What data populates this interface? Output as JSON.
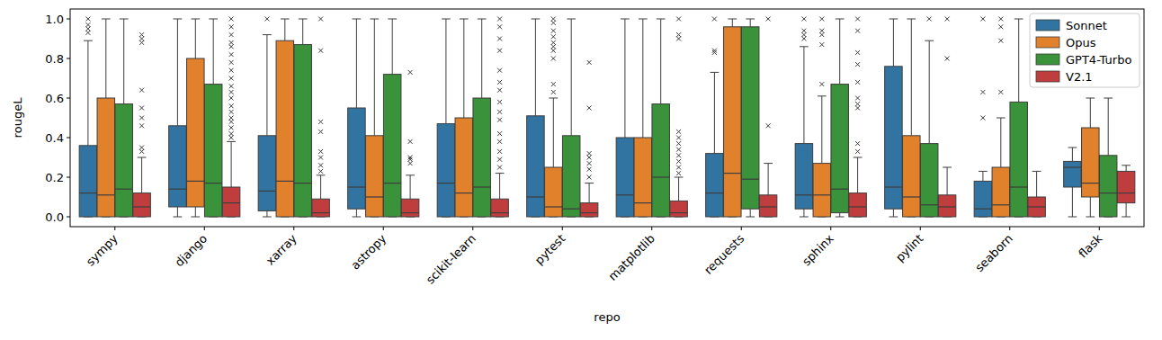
{
  "chart_data": {
    "type": "box",
    "x_label": "repo",
    "y_label": "rougeL",
    "categories": [
      "sympy",
      "django",
      "xarray",
      "astropy",
      "scikit-learn",
      "pytest",
      "matplotlib",
      "requests",
      "sphinx",
      "pylint",
      "seaborn",
      "flask"
    ],
    "ylim": [
      -0.05,
      1.05
    ],
    "yticks": [
      {
        "value": 0,
        "label": "0.0"
      },
      0.2,
      0.4,
      0.6,
      0.8,
      {
        "value": 1,
        "label": "1.0"
      }
    ],
    "grid": false,
    "legend": "upper right",
    "marker": "x",
    "series": [
      {
        "name": "Sonnet",
        "color": "#3274a1",
        "min": [
          0,
          0,
          0,
          0,
          0,
          0,
          0,
          0,
          0,
          0,
          0,
          0
        ],
        "q1": [
          0,
          0.05,
          0.03,
          0.04,
          0,
          0,
          0,
          0,
          0.04,
          0.04,
          0,
          0.15
        ],
        "median": [
          0.12,
          0.14,
          0.13,
          0.15,
          0.17,
          0.1,
          0.11,
          0.12,
          0.11,
          0.15,
          0.04,
          0.25
        ],
        "q3": [
          0.36,
          0.46,
          0.41,
          0.55,
          0.47,
          0.51,
          0.4,
          0.32,
          0.37,
          0.76,
          0.18,
          0.28
        ],
        "max": [
          0.89,
          1,
          0.92,
          1,
          1,
          1,
          1,
          0.73,
          0.86,
          1,
          0.23,
          0.35
        ],
        "outliers": [
          [
            0.93,
            0.95,
            0.97,
            1
          ],
          [],
          [
            1
          ],
          [],
          [],
          [],
          [],
          [
            0.83,
            0.84,
            1
          ],
          [
            0.9,
            0.92,
            0.94,
            1
          ],
          [],
          [
            0.5,
            0.63,
            1
          ],
          []
        ]
      },
      {
        "name": "Opus",
        "color": "#e1812c",
        "min": [
          0,
          0,
          0,
          0,
          0,
          0,
          0,
          0,
          0,
          0,
          0,
          0
        ],
        "q1": [
          0,
          0.05,
          0,
          0,
          0,
          0,
          0,
          0,
          0,
          0,
          0,
          0.1
        ],
        "median": [
          0.11,
          0.18,
          0.18,
          0.1,
          0.12,
          0.05,
          0.07,
          0.22,
          0.11,
          0.1,
          0.06,
          0.17
        ],
        "q3": [
          0.6,
          0.8,
          0.89,
          0.41,
          0.5,
          0.25,
          0.4,
          0.96,
          0.27,
          0.41,
          0.25,
          0.45
        ],
        "max": [
          1,
          1,
          1,
          1,
          1,
          0.6,
          1,
          1,
          0.61,
          1,
          0.5,
          0.6
        ],
        "outliers": [
          [],
          [],
          [],
          [],
          [],
          [
            0.63,
            0.67,
            0.8,
            0.84,
            0.86,
            0.88,
            0.91,
            0.94,
            0.98,
            1
          ],
          [],
          [],
          [
            0.67,
            0.87,
            0.92,
            0.94,
            1
          ],
          [],
          [
            0.63,
            0.89,
            0.96,
            1
          ],
          []
        ]
      },
      {
        "name": "GPT4-Turbo",
        "color": "#3a923a",
        "min": [
          0,
          0,
          0,
          0,
          0,
          0,
          0,
          0,
          0,
          0,
          0,
          0
        ],
        "q1": [
          0,
          0,
          0,
          0,
          0,
          0,
          0,
          0.04,
          0.02,
          0,
          0,
          0
        ],
        "median": [
          0.14,
          0.17,
          0.17,
          0.17,
          0.15,
          0.04,
          0.2,
          0.19,
          0.14,
          0.06,
          0.15,
          0.12
        ],
        "q3": [
          0.57,
          0.67,
          0.87,
          0.72,
          0.6,
          0.41,
          0.57,
          0.96,
          0.67,
          0.37,
          0.58,
          0.31
        ],
        "max": [
          1,
          1,
          1,
          1,
          1,
          1,
          1,
          1,
          1,
          0.89,
          1,
          0.6
        ],
        "outliers": [
          [],
          [],
          [],
          [],
          [],
          [],
          [],
          [],
          [],
          [
            1
          ],
          [],
          []
        ]
      },
      {
        "name": "V2.1",
        "color": "#c03d3e",
        "min": [
          0,
          0,
          0,
          0,
          0,
          0,
          0,
          0,
          0,
          0,
          0,
          0
        ],
        "q1": [
          0,
          0,
          0,
          0,
          0,
          0,
          0,
          0,
          0,
          0,
          0,
          0.07
        ],
        "median": [
          0.05,
          0.07,
          0.02,
          0.02,
          0.02,
          0.02,
          0.02,
          0.05,
          0.05,
          0.05,
          0.05,
          0.12
        ],
        "q3": [
          0.12,
          0.15,
          0.09,
          0.09,
          0.09,
          0.07,
          0.08,
          0.11,
          0.12,
          0.11,
          0.1,
          0.23
        ],
        "max": [
          0.3,
          0.38,
          0.21,
          0.21,
          0.22,
          0.17,
          0.2,
          0.27,
          0.3,
          0.25,
          0.23,
          0.26
        ],
        "outliers": [
          [
            0.33,
            0.35,
            0.46,
            0.5,
            0.55,
            0.64,
            0.88,
            0.9,
            0.92
          ],
          [
            0.4,
            0.42,
            0.45,
            0.48,
            0.5,
            0.53,
            0.56,
            0.6,
            0.63,
            0.66,
            0.7,
            0.74,
            0.78,
            0.82,
            0.86,
            0.88,
            0.92,
            0.96,
            1
          ],
          [
            0.23,
            0.26,
            0.3,
            0.33,
            0.43,
            0.48,
            0.84,
            1
          ],
          [
            0.27,
            0.29,
            0.3,
            0.38,
            0.73
          ],
          [
            0.25,
            0.29,
            0.33,
            0.38,
            0.42,
            0.49,
            0.53,
            0.58,
            0.64,
            0.68,
            0.74,
            0.84,
            0.9,
            0.96,
            1
          ],
          [
            0.2,
            0.24,
            0.27,
            0.3,
            0.32,
            0.55,
            0.78
          ],
          [
            0.22,
            0.25,
            0.28,
            0.31,
            0.34,
            0.37,
            0.4,
            0.43,
            0.9,
            0.92,
            1
          ],
          [
            0.46,
            1
          ],
          [
            0.33,
            0.37,
            0.55,
            0.57,
            0.6,
            0.68,
            0.77,
            0.83,
            0.94,
            1
          ],
          [
            0.8,
            1
          ],
          [],
          []
        ]
      }
    ]
  }
}
